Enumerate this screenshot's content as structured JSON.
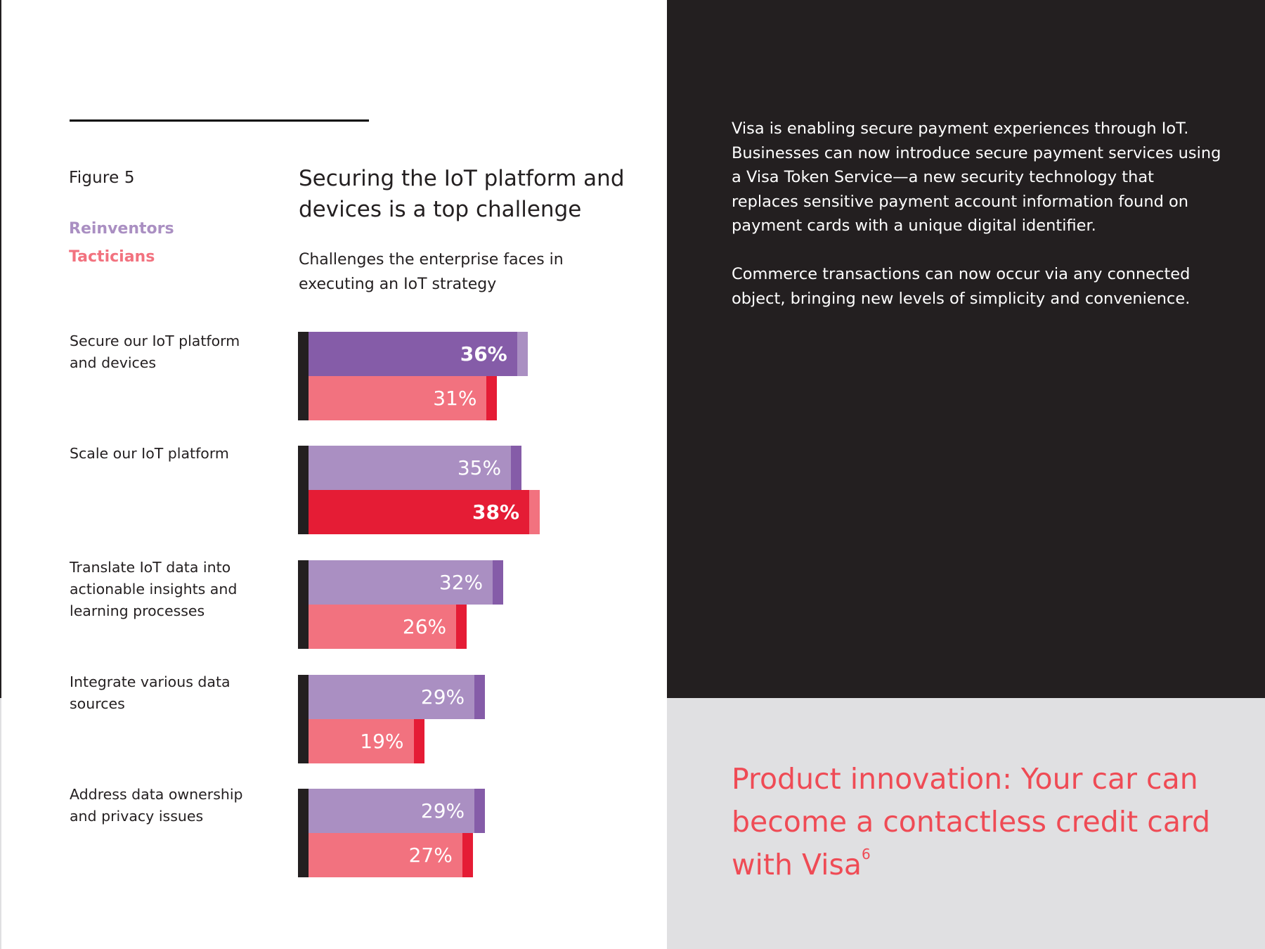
{
  "figure": {
    "label": "Figure 5",
    "legend": [
      {
        "name": "Reinventors",
        "color": "#aa8fc2"
      },
      {
        "name": "Tacticians",
        "color": "#f2727f"
      }
    ]
  },
  "chart_data": {
    "type": "bar",
    "orientation": "horizontal",
    "title": "Securing the IoT platform and devices is a top challenge",
    "subtitle": "Challenges the enterprise faces in executing an IoT strategy",
    "xlabel": "",
    "ylabel": "",
    "unit": "%",
    "xlim": [
      0,
      40
    ],
    "grid": false,
    "legend_position": "top-left",
    "categories": [
      "Secure our IoT platform and devices",
      "Scale our IoT platform",
      "Translate IoT data into actionable insights and learning processes",
      "Integrate various data sources",
      "Address data ownership and privacy issues"
    ],
    "series": [
      {
        "name": "Reinventors",
        "values": [
          36,
          35,
          32,
          29,
          29
        ],
        "highlight": [
          true,
          false,
          false,
          false,
          false
        ],
        "color_light": "#aa8fc2",
        "color_dark": "#855ca8"
      },
      {
        "name": "Tacticians",
        "values": [
          31,
          38,
          26,
          19,
          27
        ],
        "highlight": [
          false,
          true,
          false,
          false,
          false
        ],
        "color_light": "#f2727f",
        "color_dark": "#e51c35"
      }
    ],
    "value_labels": [
      [
        "36%",
        "31%"
      ],
      [
        "35%",
        "38%"
      ],
      [
        "32%",
        "26%"
      ],
      [
        "29%",
        "19%"
      ],
      [
        "29%",
        "27%"
      ]
    ]
  },
  "sidebar": {
    "paragraph_1": "Visa is enabling secure payment experiences through IoT. Businesses can now introduce secure payment services using a Visa Token Service—a new security technology that replaces sensitive payment account information found on payment cards with a unique digital identifier.",
    "paragraph_2": "Commerce transactions can now occur via any connected object, bringing new levels of simplicity and convenience.",
    "callout_text": "Product innovation: Your car can become a contactless credit card with Visa",
    "callout_footnote": "6"
  },
  "colors": {
    "dark_panel": "#231f20",
    "grey_panel": "#e0e0e2",
    "callout": "#ef4b55"
  }
}
